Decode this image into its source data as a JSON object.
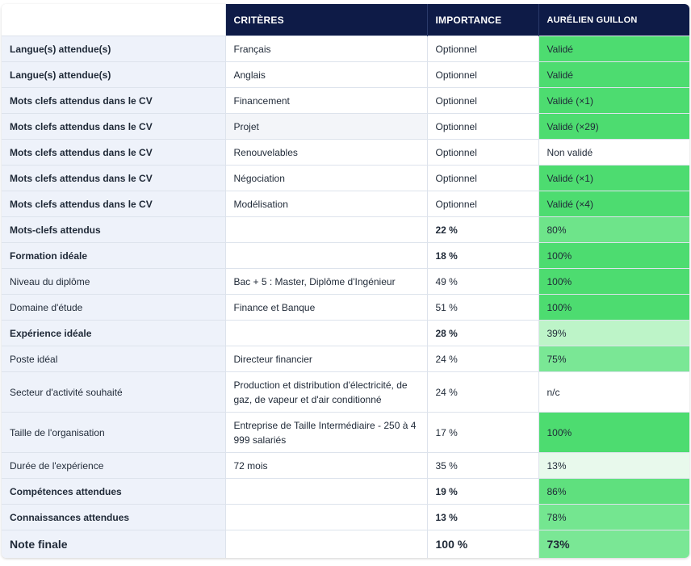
{
  "header": {
    "criteria": "CRITÈRES",
    "importance": "IMPORTANCE",
    "candidate": "AURÉLIEN GUILLON"
  },
  "rows": [
    {
      "label": "Langue(s) attendue(s)",
      "value": "Français",
      "importance": "Optionnel",
      "result": "Validé",
      "color": "#4ddc70"
    },
    {
      "label": "Langue(s) attendue(s)",
      "value": "Anglais",
      "importance": "Optionnel",
      "result": "Validé",
      "color": "#4ddc70"
    },
    {
      "label": "Mots clefs attendus dans le CV",
      "value": "Financement",
      "importance": "Optionnel",
      "result": "Validé (×1)",
      "color": "#4ddc70"
    },
    {
      "label": "Mots clefs attendus dans le CV",
      "value": "Projet",
      "importance": "Optionnel",
      "result": "Validé (×29)",
      "color": "#4ddc70"
    },
    {
      "label": "Mots clefs attendus dans le CV",
      "value": "Renouvelables",
      "importance": "Optionnel",
      "result": "Non validé",
      "color": "#ffffff"
    },
    {
      "label": "Mots clefs attendus dans le CV",
      "value": "Négociation",
      "importance": "Optionnel",
      "result": "Validé (×1)",
      "color": "#4ddc70"
    },
    {
      "label": "Mots clefs attendus dans le CV",
      "value": "Modélisation",
      "importance": "Optionnel",
      "result": "Validé (×4)",
      "color": "#4ddc70"
    },
    {
      "label": "Mots-clefs attendus",
      "value": "",
      "importance": "22 %",
      "result": "80%",
      "color": "#6ee48a"
    },
    {
      "label": "Formation idéale",
      "value": "",
      "importance": "18 %",
      "result": "100%",
      "color": "#4ddc70"
    },
    {
      "label": "Niveau du diplôme",
      "value": "Bac + 5 : Master, Diplôme d'Ingénieur",
      "importance": "49 %",
      "result": "100%",
      "color": "#4ddc70"
    },
    {
      "label": "Domaine d'étude",
      "value": "Finance et Banque",
      "importance": "51 %",
      "result": "100%",
      "color": "#4ddc70"
    },
    {
      "label": "Expérience idéale",
      "value": "",
      "importance": "28 %",
      "result": "39%",
      "color": "#bdf4c8"
    },
    {
      "label": "Poste idéal",
      "value": "Directeur financier",
      "importance": "24 %",
      "result": "75%",
      "color": "#7ae795"
    },
    {
      "label": "Secteur d'activité souhaité",
      "value": "Production et distribution d'électricité, de gaz, de vapeur et d'air conditionné",
      "importance": "24 %",
      "result": "n/c",
      "color": "#ffffff"
    },
    {
      "label": "Taille de l'organisation",
      "value": "Entreprise de Taille Intermédiaire - 250 à 4 999 salariés",
      "importance": "17 %",
      "result": "100%",
      "color": "#4ddc70"
    },
    {
      "label": "Durée de l'expérience",
      "value": "72 mois",
      "importance": "35 %",
      "result": "13%",
      "color": "#e8f9ec"
    },
    {
      "label": "Compétences attendues",
      "value": "",
      "importance": "19 %",
      "result": "86%",
      "color": "#5fe07e"
    },
    {
      "label": "Connaissances attendues",
      "value": "",
      "importance": "13 %",
      "result": "78%",
      "color": "#74e690"
    },
    {
      "label": "Note finale",
      "value": "",
      "importance": "100 %",
      "result": "73%",
      "color": "#7ae795"
    }
  ]
}
